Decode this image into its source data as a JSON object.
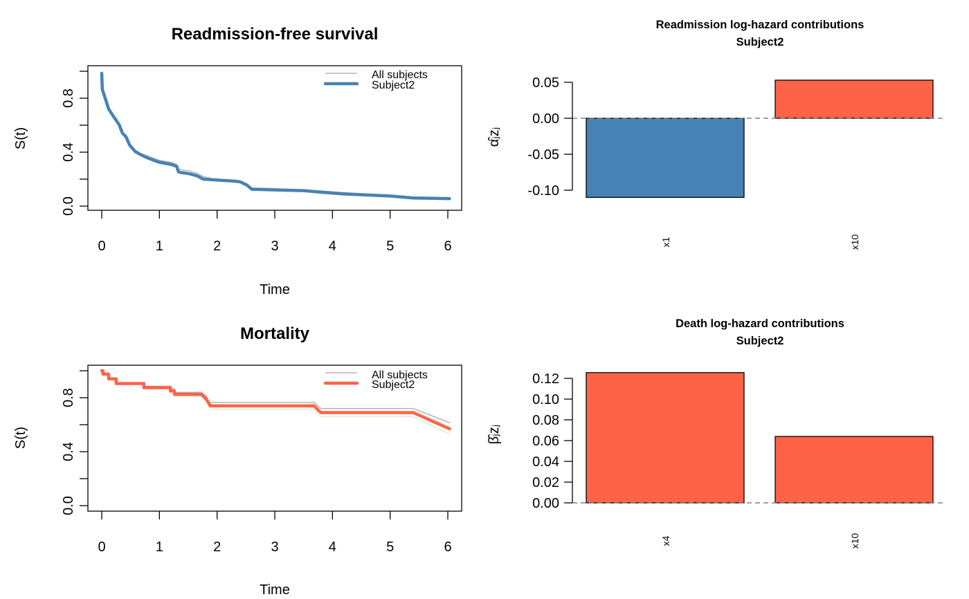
{
  "chart_data": [
    {
      "id": "readmission-survival",
      "type": "line",
      "title": "Readmission-free survival",
      "xlabel": "Time",
      "ylabel": "S(t)",
      "xlim": [
        0,
        6
      ],
      "ylim": [
        0,
        1
      ],
      "x_ticks": [
        "0",
        "1",
        "2",
        "3",
        "4",
        "5",
        "6"
      ],
      "y_ticks": [
        0,
        0.2,
        0.4,
        0.6,
        0.8,
        1.0
      ],
      "y_tick_labels": [
        "0.0",
        "",
        "0.4",
        "",
        "0.8",
        ""
      ],
      "legend": {
        "position": "top-right",
        "entries": [
          "All subjects",
          "Subject2"
        ]
      },
      "series": [
        {
          "name": "All subjects",
          "color": "#b3b3b3",
          "points": [
            [
              0,
              0.985
            ],
            [
              0.01,
              0.87
            ],
            [
              0.06,
              0.8
            ],
            [
              0.12,
              0.725
            ],
            [
              0.22,
              0.66
            ],
            [
              0.3,
              0.61
            ],
            [
              0.36,
              0.545
            ],
            [
              0.42,
              0.52
            ],
            [
              0.48,
              0.46
            ],
            [
              0.58,
              0.415
            ],
            [
              0.68,
              0.39
            ],
            [
              0.78,
              0.375
            ],
            [
              0.9,
              0.355
            ],
            [
              1.0,
              0.34
            ],
            [
              1.2,
              0.325
            ],
            [
              1.3,
              0.31
            ],
            [
              1.33,
              0.275
            ],
            [
              1.36,
              0.27
            ],
            [
              1.52,
              0.26
            ],
            [
              1.65,
              0.245
            ],
            [
              1.76,
              0.22
            ],
            [
              1.95,
              0.2
            ],
            [
              2.3,
              0.19
            ],
            [
              2.4,
              0.185
            ],
            [
              2.52,
              0.165
            ],
            [
              2.6,
              0.135
            ],
            [
              3.0,
              0.13
            ],
            [
              3.5,
              0.12
            ],
            [
              3.9,
              0.11
            ],
            [
              4.2,
              0.1
            ],
            [
              5.0,
              0.08
            ],
            [
              5.4,
              0.065
            ],
            [
              6.03,
              0.06
            ]
          ]
        },
        {
          "name": "Subject2",
          "color": "#4682b4",
          "points": [
            [
              0,
              0.985
            ],
            [
              0.01,
              0.865
            ],
            [
              0.06,
              0.8
            ],
            [
              0.12,
              0.72
            ],
            [
              0.22,
              0.655
            ],
            [
              0.3,
              0.605
            ],
            [
              0.36,
              0.54
            ],
            [
              0.42,
              0.515
            ],
            [
              0.48,
              0.455
            ],
            [
              0.58,
              0.405
            ],
            [
              0.68,
              0.38
            ],
            [
              0.78,
              0.36
            ],
            [
              0.9,
              0.34
            ],
            [
              1.0,
              0.325
            ],
            [
              1.2,
              0.31
            ],
            [
              1.3,
              0.295
            ],
            [
              1.33,
              0.255
            ],
            [
              1.36,
              0.25
            ],
            [
              1.52,
              0.24
            ],
            [
              1.65,
              0.225
            ],
            [
              1.76,
              0.2
            ],
            [
              1.95,
              0.195
            ],
            [
              2.3,
              0.185
            ],
            [
              2.4,
              0.18
            ],
            [
              2.52,
              0.155
            ],
            [
              2.6,
              0.125
            ],
            [
              3.0,
              0.12
            ],
            [
              3.5,
              0.115
            ],
            [
              3.9,
              0.1
            ],
            [
              4.2,
              0.09
            ],
            [
              5.0,
              0.075
            ],
            [
              5.4,
              0.06
            ],
            [
              6.03,
              0.056
            ]
          ]
        },
        {
          "name": "Lower band",
          "color": "#d5f0d0",
          "points": [
            [
              0,
              0.98
            ],
            [
              0.01,
              0.86
            ],
            [
              0.06,
              0.79
            ],
            [
              0.12,
              0.715
            ],
            [
              0.22,
              0.65
            ],
            [
              0.3,
              0.6
            ],
            [
              0.36,
              0.535
            ],
            [
              0.42,
              0.51
            ],
            [
              0.48,
              0.45
            ],
            [
              0.58,
              0.4
            ],
            [
              0.68,
              0.375
            ],
            [
              0.78,
              0.355
            ],
            [
              0.9,
              0.335
            ],
            [
              1.0,
              0.32
            ],
            [
              1.2,
              0.305
            ],
            [
              1.3,
              0.29
            ],
            [
              1.33,
              0.25
            ],
            [
              1.36,
              0.245
            ],
            [
              1.52,
              0.235
            ],
            [
              1.65,
              0.22
            ],
            [
              1.76,
              0.195
            ],
            [
              1.95,
              0.19
            ],
            [
              2.3,
              0.18
            ],
            [
              2.4,
              0.175
            ],
            [
              2.52,
              0.15
            ],
            [
              2.6,
              0.12
            ],
            [
              3.0,
              0.115
            ],
            [
              3.5,
              0.11
            ],
            [
              3.9,
              0.095
            ],
            [
              4.2,
              0.085
            ],
            [
              5.0,
              0.07
            ],
            [
              5.4,
              0.055
            ],
            [
              6.03,
              0.052
            ]
          ]
        }
      ]
    },
    {
      "id": "readmission-contrib",
      "type": "bar",
      "title": "Readmission log-hazard contributions",
      "subtitle": "Subject2",
      "xlabel": "",
      "ylabel": "α̂ⱼzⱼ",
      "categories": [
        "x1",
        "x10"
      ],
      "values": [
        -0.11,
        0.053
      ],
      "colors": [
        "#4682b4",
        "#ff6347"
      ],
      "ylim": [
        -0.112,
        0.055
      ],
      "y_ticks": [
        -0.1,
        -0.05,
        0.0,
        0.05
      ],
      "y_tick_labels": [
        "-0.10",
        "-0.05",
        "0.00",
        "0.05"
      ],
      "reference_line": 0
    },
    {
      "id": "mortality-survival",
      "type": "line",
      "title": "Mortality",
      "xlabel": "Time",
      "ylabel": "S(t)",
      "xlim": [
        0,
        6
      ],
      "ylim": [
        0,
        1
      ],
      "x_ticks": [
        "0",
        "1",
        "2",
        "3",
        "4",
        "5",
        "6"
      ],
      "y_ticks": [
        0,
        0.2,
        0.4,
        0.6,
        0.8,
        1.0
      ],
      "y_tick_labels": [
        "0.0",
        "",
        "0.4",
        "",
        "0.8",
        ""
      ],
      "legend": {
        "position": "top-right",
        "entries": [
          "All subjects",
          "Subject2"
        ]
      },
      "series": [
        {
          "name": "All subjects",
          "color": "#b3b3b3",
          "points": [
            [
              0,
              1.0
            ],
            [
              0.02,
              1.0
            ],
            [
              0.02,
              0.975
            ],
            [
              0.12,
              0.975
            ],
            [
              0.12,
              0.945
            ],
            [
              0.25,
              0.945
            ],
            [
              0.25,
              0.91
            ],
            [
              0.73,
              0.91
            ],
            [
              0.73,
              0.885
            ],
            [
              1.19,
              0.885
            ],
            [
              1.19,
              0.865
            ],
            [
              1.26,
              0.865
            ],
            [
              1.26,
              0.84
            ],
            [
              1.73,
              0.84
            ],
            [
              1.82,
              0.81
            ],
            [
              1.85,
              0.765
            ],
            [
              3.68,
              0.765
            ],
            [
              3.8,
              0.72
            ],
            [
              5.4,
              0.72
            ],
            [
              6.03,
              0.615
            ]
          ]
        },
        {
          "name": "Subject2",
          "color": "#ff6347",
          "points": [
            [
              0,
              1.0
            ],
            [
              0.02,
              1.0
            ],
            [
              0.02,
              0.975
            ],
            [
              0.12,
              0.975
            ],
            [
              0.12,
              0.94
            ],
            [
              0.25,
              0.94
            ],
            [
              0.25,
              0.905
            ],
            [
              0.73,
              0.905
            ],
            [
              0.73,
              0.875
            ],
            [
              1.19,
              0.875
            ],
            [
              1.19,
              0.85
            ],
            [
              1.26,
              0.85
            ],
            [
              1.26,
              0.825
            ],
            [
              1.73,
              0.825
            ],
            [
              1.82,
              0.785
            ],
            [
              1.88,
              0.74
            ],
            [
              3.68,
              0.74
            ],
            [
              3.8,
              0.69
            ],
            [
              5.4,
              0.69
            ],
            [
              6.03,
              0.57
            ]
          ]
        },
        {
          "name": "Lower band",
          "color": "#d5f0d0",
          "points": [
            [
              0,
              0.995
            ],
            [
              0.02,
              0.995
            ],
            [
              0.02,
              0.97
            ],
            [
              0.12,
              0.97
            ],
            [
              0.12,
              0.935
            ],
            [
              0.25,
              0.935
            ],
            [
              0.25,
              0.9
            ],
            [
              0.73,
              0.9
            ],
            [
              0.73,
              0.865
            ],
            [
              1.19,
              0.865
            ],
            [
              1.19,
              0.84
            ],
            [
              1.26,
              0.84
            ],
            [
              1.26,
              0.81
            ],
            [
              1.73,
              0.81
            ],
            [
              1.82,
              0.765
            ],
            [
              1.88,
              0.715
            ],
            [
              3.68,
              0.715
            ],
            [
              3.8,
              0.66
            ],
            [
              5.4,
              0.66
            ],
            [
              6.03,
              0.53
            ]
          ]
        }
      ]
    },
    {
      "id": "death-contrib",
      "type": "bar",
      "title": "Death log-hazard contributions",
      "subtitle": "Subject2",
      "xlabel": "",
      "ylabel": "β̂ⱼzⱼ",
      "categories": [
        "x4",
        "x10"
      ],
      "values": [
        0.1255,
        0.064
      ],
      "colors": [
        "#ff6347",
        "#ff6347"
      ],
      "ylim": [
        0,
        0.1255
      ],
      "y_ticks": [
        0,
        0.02,
        0.04,
        0.06,
        0.08,
        0.1,
        0.12
      ],
      "y_tick_labels": [
        "0.00",
        "0.02",
        "0.04",
        "0.06",
        "0.08",
        "0.10",
        "0.12"
      ],
      "reference_line": 0
    }
  ]
}
